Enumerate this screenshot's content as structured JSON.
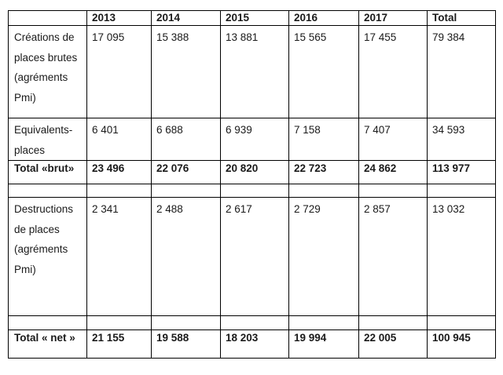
{
  "table": {
    "headers": [
      "",
      "2013",
      "2014",
      "2015",
      "2016",
      "2017",
      "Total"
    ],
    "rows": [
      {
        "label": "Créations de places brutes (agréments Pmi)",
        "values": [
          "17 095",
          "15 388",
          "13 881",
          "15 565",
          "17 455",
          "79 384"
        ]
      },
      {
        "label": "Equivalents-places",
        "values": [
          "6 401",
          "6 688",
          "6 939",
          "7 158",
          "7 407",
          "34 593"
        ]
      },
      {
        "label": "Total «brut»",
        "values": [
          "23 496",
          "22 076",
          "20 820",
          "22 723",
          "24 862",
          "113 977"
        ]
      },
      {
        "label": "Destructions de places (agréments Pmi)",
        "values": [
          "2 341",
          "2 488",
          "2 617",
          "2 729",
          "2 857",
          "13 032"
        ]
      },
      {
        "label": "Total « net »",
        "values": [
          "21 155",
          "19 588",
          "18 203",
          "19 994",
          "22 005",
          "100 945"
        ]
      }
    ]
  }
}
